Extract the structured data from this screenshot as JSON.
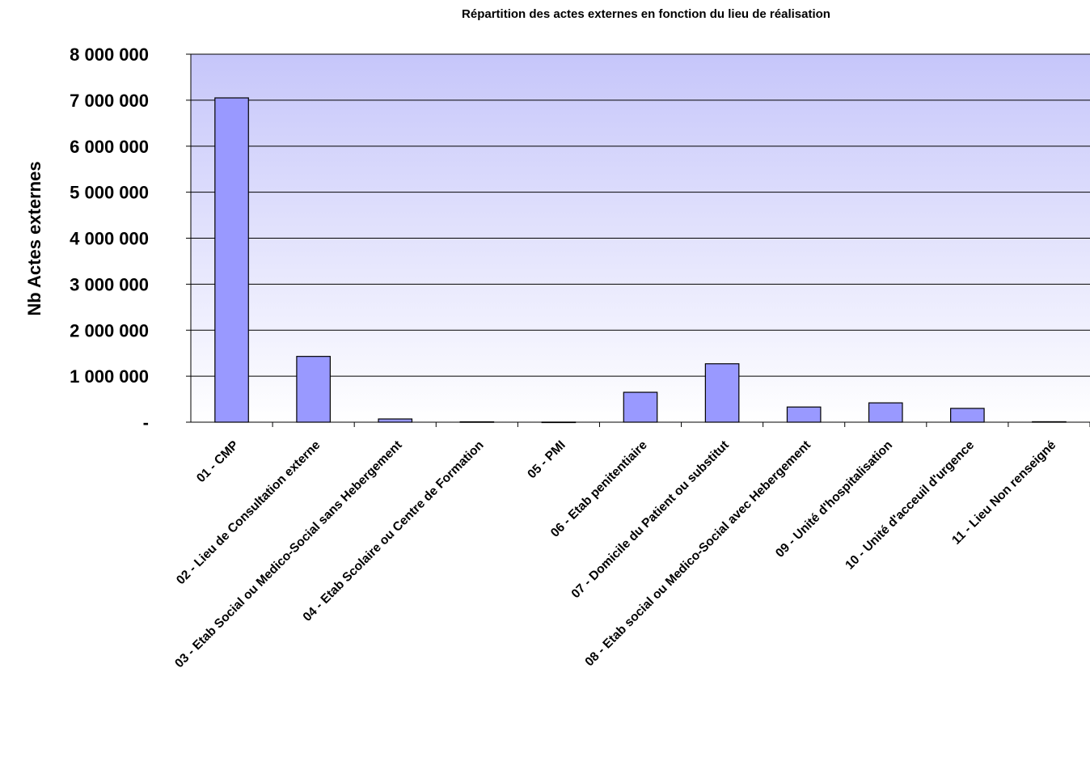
{
  "chart_data": {
    "type": "bar",
    "title": "Répartition des actes externes en fonction du lieu de réalisation",
    "xlabel": "",
    "ylabel": "Nb Actes externes",
    "ylim": [
      0,
      8000000
    ],
    "yticks": [
      0,
      1000000,
      2000000,
      3000000,
      4000000,
      5000000,
      6000000,
      7000000,
      8000000
    ],
    "ytick_labels": [
      "-",
      "1 000 000",
      "2 000 000",
      "3 000 000",
      "4 000 000",
      "5 000 000",
      "6 000 000",
      "7 000 000",
      "8 000 000"
    ],
    "grid": true,
    "legend": "none",
    "categories": [
      "01 - CMP",
      "02 - Lieu de Consultation externe",
      "03 - Etab Social ou Medico-Social sans Hebergement",
      "04 - Etab Scolaire ou Centre de Formation",
      "05 - PMI",
      "06 - Etab penitentiaire",
      "07 - Domicile du Patient ou substitut",
      "08 - Etab social ou Medico-Social avec Hebergement",
      "09 - Unité d'hospitalisation",
      "10 - Unité d'acceuil d'urgence",
      "11 - Lieu Non renseigné"
    ],
    "values": [
      7050000,
      1430000,
      70000,
      8000,
      2000,
      650000,
      1270000,
      330000,
      420000,
      300000,
      10000
    ],
    "colors": {
      "bar": "#9999ff",
      "plot_top": "#c6c6fa",
      "plot_bottom": "#ffffff"
    }
  }
}
